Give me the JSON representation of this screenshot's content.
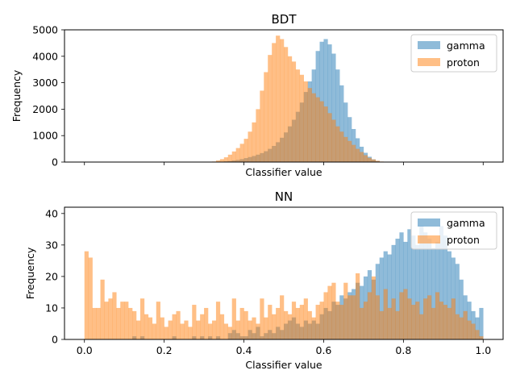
{
  "colors": {
    "gamma": "#1f77b4",
    "proton": "#ff7f0e"
  },
  "chart_data": [
    {
      "type": "histogram",
      "title": "BDT",
      "xlabel": "Classifier value",
      "ylabel": "Frequency",
      "xlim": [
        -0.05,
        1.05
      ],
      "ylim": [
        0,
        5000
      ],
      "xticks": [
        0.0,
        0.2,
        0.4,
        0.6,
        0.8,
        1.0
      ],
      "xtick_labels_shown": false,
      "yticks": [
        0,
        1000,
        2000,
        3000,
        4000,
        5000
      ],
      "ytick_labels": [
        "0",
        "1000",
        "2000",
        "3000",
        "4000",
        "5000"
      ],
      "legend_position": "top-right",
      "legend": [
        "gamma",
        "proton"
      ],
      "bin_start": 0.0,
      "bin_width": 0.01,
      "series": [
        {
          "name": "gamma",
          "values": [
            0,
            0,
            0,
            0,
            0,
            0,
            0,
            0,
            0,
            0,
            0,
            0,
            0,
            0,
            0,
            0,
            0,
            0,
            0,
            0,
            0,
            0,
            0,
            0,
            0,
            0,
            0,
            0,
            0,
            0,
            0,
            0,
            5,
            10,
            15,
            25,
            40,
            60,
            80,
            110,
            150,
            190,
            230,
            280,
            340,
            410,
            500,
            610,
            750,
            920,
            1120,
            1350,
            1600,
            1900,
            2250,
            2650,
            3050,
            3500,
            4200,
            4550,
            4650,
            4450,
            4100,
            3500,
            2900,
            2250,
            1700,
            1250,
            900,
            580,
            350,
            200,
            100,
            40,
            10,
            0,
            0,
            0,
            0,
            0,
            0,
            0,
            0,
            0,
            0,
            0,
            0,
            0,
            0,
            0,
            0,
            0,
            0,
            0,
            0,
            0,
            0,
            0,
            0,
            0
          ]
        },
        {
          "name": "proton",
          "values": [
            0,
            0,
            0,
            0,
            0,
            0,
            0,
            0,
            0,
            0,
            0,
            0,
            0,
            0,
            0,
            0,
            0,
            0,
            0,
            0,
            0,
            0,
            0,
            0,
            0,
            0,
            0,
            0,
            0,
            0,
            0,
            0,
            20,
            60,
            110,
            180,
            280,
            400,
            530,
            690,
            880,
            1150,
            1500,
            2000,
            2700,
            3400,
            4050,
            4500,
            4780,
            4650,
            4350,
            4000,
            3800,
            3500,
            3300,
            3050,
            2800,
            2600,
            2450,
            2300,
            2100,
            1850,
            1600,
            1350,
            1150,
            950,
            800,
            650,
            500,
            380,
            260,
            160,
            100,
            50,
            20,
            0,
            0,
            0,
            0,
            0,
            0,
            0,
            0,
            0,
            0,
            0,
            0,
            0,
            0,
            0,
            0,
            0,
            0,
            0,
            0,
            0,
            0,
            0,
            0,
            0
          ]
        }
      ]
    },
    {
      "type": "histogram",
      "title": "NN",
      "xlabel": "Classifier value",
      "ylabel": "Frequency",
      "xlim": [
        -0.05,
        1.05
      ],
      "ylim": [
        0,
        42
      ],
      "xticks": [
        0.0,
        0.2,
        0.4,
        0.6,
        0.8,
        1.0
      ],
      "xtick_labels": [
        "0.0",
        "0.2",
        "0.4",
        "0.6",
        "0.8",
        "1.0"
      ],
      "yticks": [
        0,
        10,
        20,
        30,
        40
      ],
      "ytick_labels": [
        "0",
        "10",
        "20",
        "30",
        "40"
      ],
      "legend_position": "top-right",
      "legend": [
        "gamma",
        "proton"
      ],
      "bin_start": 0.0,
      "bin_width": 0.01,
      "series": [
        {
          "name": "gamma",
          "values": [
            0,
            0,
            0,
            0,
            0,
            0,
            0,
            0,
            0,
            0,
            0,
            0,
            1,
            0,
            1,
            0,
            0,
            0,
            0,
            0,
            0,
            0,
            1,
            0,
            0,
            0,
            0,
            1,
            0,
            1,
            0,
            1,
            0,
            1,
            0,
            0,
            2,
            3,
            2,
            1,
            1,
            3,
            2,
            4,
            1,
            2,
            3,
            2,
            4,
            3,
            5,
            6,
            7,
            5,
            4,
            6,
            5,
            6,
            5,
            8,
            10,
            9,
            12,
            11,
            14,
            13,
            15,
            16,
            18,
            17,
            20,
            22,
            19,
            24,
            26,
            28,
            27,
            30,
            32,
            34,
            31,
            35,
            33,
            30,
            36,
            34,
            32,
            29,
            31,
            36,
            33,
            28,
            26,
            24,
            19,
            14,
            12,
            9,
            7,
            10
          ]
        },
        {
          "name": "proton",
          "values": [
            28,
            26,
            10,
            10,
            19,
            12,
            13,
            15,
            10,
            12,
            12,
            10,
            9,
            6,
            13,
            8,
            7,
            5,
            12,
            7,
            4,
            6,
            8,
            9,
            5,
            6,
            4,
            11,
            6,
            8,
            10,
            5,
            6,
            12,
            8,
            5,
            4,
            13,
            6,
            10,
            9,
            6,
            7,
            5,
            13,
            7,
            11,
            8,
            10,
            14,
            9,
            8,
            12,
            10,
            11,
            13,
            9,
            7,
            11,
            12,
            15,
            17,
            18,
            12,
            11,
            18,
            14,
            14,
            21,
            10,
            12,
            15,
            20,
            14,
            9,
            16,
            10,
            13,
            9,
            15,
            16,
            13,
            11,
            12,
            8,
            13,
            14,
            10,
            15,
            12,
            11,
            10,
            13,
            8,
            7,
            9,
            6,
            5,
            3,
            1
          ]
        }
      ]
    }
  ]
}
